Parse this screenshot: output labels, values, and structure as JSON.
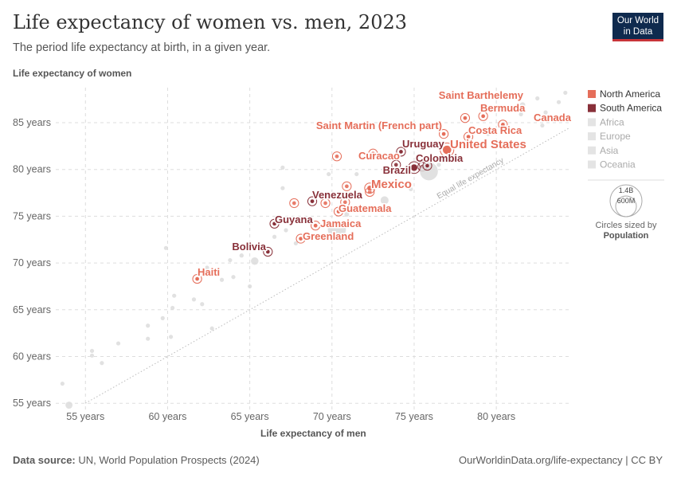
{
  "header": {
    "title": "Life expectancy of women vs. men, 2023",
    "subtitle": "The period life expectancy at birth, in a given year.",
    "logo": "Our World in Data"
  },
  "footer": {
    "source_label": "Data source:",
    "source": "UN, World Population Prospects (2024)",
    "license": "OurWorldinData.org/life-expectancy | CC BY"
  },
  "chart_data": {
    "type": "scatter",
    "title": "Life expectancy of women vs. men, 2023",
    "xlabel": "Life expectancy of men",
    "ylabel": "Life expectancy of women",
    "xlim": [
      53,
      84.5
    ],
    "ylim": [
      54.25,
      88.75
    ],
    "xticks": [
      {
        "v": 55,
        "label": "55 years"
      },
      {
        "v": 60,
        "label": "60 years"
      },
      {
        "v": 65,
        "label": "65 years"
      },
      {
        "v": 70,
        "label": "70 years"
      },
      {
        "v": 75,
        "label": "75 years"
      },
      {
        "v": 80,
        "label": "80 years"
      }
    ],
    "yticks": [
      {
        "v": 55,
        "label": "55 years"
      },
      {
        "v": 60,
        "label": "60 years"
      },
      {
        "v": 65,
        "label": "65 years"
      },
      {
        "v": 70,
        "label": "70 years"
      },
      {
        "v": 75,
        "label": "75 years"
      },
      {
        "v": 80,
        "label": "80 years"
      },
      {
        "v": 85,
        "label": "85 years"
      }
    ],
    "grid": true,
    "reference_line": {
      "label": "Equal life expectancy"
    },
    "colors": {
      "North America": "#e56e5a",
      "South America": "#883039",
      "other": "#dcdcdc"
    },
    "legend": {
      "position": "right",
      "entries": [
        "North America",
        "South America",
        "Africa",
        "Europe",
        "Asia",
        "Oceania"
      ],
      "size_title": "Circles sized by",
      "size_var": "Population",
      "size_values": [
        "1.4B",
        "600M"
      ]
    },
    "labeled_points": [
      {
        "name": "Saint Barthelemy",
        "region": "North America",
        "x": 78.1,
        "y": 85.5,
        "pop": 0.01
      },
      {
        "name": "Bermuda",
        "region": "North America",
        "x": 79.2,
        "y": 85.7,
        "pop": 0.06
      },
      {
        "name": "Canada",
        "region": "North America",
        "x": 80.4,
        "y": 84.8,
        "pop": 39
      },
      {
        "name": "Saint Martin (French part)",
        "region": "North America",
        "x": 76.8,
        "y": 83.8,
        "pop": 0.03
      },
      {
        "name": "Costa Rica",
        "region": "North America",
        "x": 78.3,
        "y": 83.5,
        "pop": 5
      },
      {
        "name": "United States",
        "region": "North America",
        "x": 77.0,
        "y": 82.1,
        "pop": 340
      },
      {
        "name": "Uruguay",
        "region": "South America",
        "x": 74.2,
        "y": 81.9,
        "pop": 3.4
      },
      {
        "name": "Curacao",
        "region": "North America",
        "x": 72.5,
        "y": 81.7,
        "pop": 0.2
      },
      {
        "name": "Colombia",
        "region": "South America",
        "x": 75.8,
        "y": 80.4,
        "pop": 52
      },
      {
        "name": "Brazil",
        "region": "South America",
        "x": 75.0,
        "y": 80.2,
        "pop": 211
      },
      {
        "name": "Mexico",
        "region": "North America",
        "x": 72.3,
        "y": 78.0,
        "pop": 129
      },
      {
        "name": "Venezuela",
        "region": "South America",
        "x": 68.8,
        "y": 76.6,
        "pop": 28
      },
      {
        "name": "Guatemala",
        "region": "North America",
        "x": 70.4,
        "y": 75.5,
        "pop": 18
      },
      {
        "name": "Guyana",
        "region": "South America",
        "x": 66.5,
        "y": 74.2,
        "pop": 0.8
      },
      {
        "name": "Jamaica",
        "region": "North America",
        "x": 69.0,
        "y": 74.0,
        "pop": 2.8
      },
      {
        "name": "Greenland",
        "region": "North America",
        "x": 68.1,
        "y": 72.6,
        "pop": 0.06
      },
      {
        "name": "Bolivia",
        "region": "South America",
        "x": 66.1,
        "y": 71.2,
        "pop": 12
      },
      {
        "name": "Haiti",
        "region": "North America",
        "x": 61.8,
        "y": 68.3,
        "pop": 11.7
      }
    ],
    "other_points": [
      {
        "region": "North America",
        "x": 70.3,
        "y": 81.4,
        "pop": 0.1
      },
      {
        "region": "North America",
        "x": 67.7,
        "y": 76.4,
        "pop": 0.4
      },
      {
        "region": "North America",
        "x": 69.6,
        "y": 76.4,
        "pop": 0.5
      },
      {
        "region": "North America",
        "x": 70.9,
        "y": 78.2,
        "pop": 0.3
      },
      {
        "region": "North America",
        "x": 70.8,
        "y": 76.5,
        "pop": 1
      },
      {
        "region": "South America",
        "x": 73.9,
        "y": 80.5,
        "pop": 20
      },
      {
        "region": "South America",
        "x": 75.5,
        "y": 80.3,
        "pop": 46
      },
      {
        "region": "North America",
        "x": 72.3,
        "y": 77.6,
        "pop": 6
      },
      {
        "region": "other",
        "x": 53.6,
        "y": 57.1,
        "pop": 5
      },
      {
        "region": "other",
        "x": 54.0,
        "y": 54.8,
        "pop": 220
      },
      {
        "region": "other",
        "x": 55.4,
        "y": 60.6,
        "pop": 5
      },
      {
        "region": "other",
        "x": 55.4,
        "y": 60.1,
        "pop": 5
      },
      {
        "region": "other",
        "x": 56.0,
        "y": 59.3,
        "pop": 5
      },
      {
        "region": "other",
        "x": 57.0,
        "y": 61.4,
        "pop": 5
      },
      {
        "region": "other",
        "x": 58.8,
        "y": 63.3,
        "pop": 10
      },
      {
        "region": "other",
        "x": 58.8,
        "y": 61.9,
        "pop": 10
      },
      {
        "region": "other",
        "x": 59.7,
        "y": 64.1,
        "pop": 60
      },
      {
        "region": "other",
        "x": 60.2,
        "y": 62.1,
        "pop": 10
      },
      {
        "region": "other",
        "x": 60.3,
        "y": 65.2,
        "pop": 15
      },
      {
        "region": "other",
        "x": 60.4,
        "y": 66.5,
        "pop": 5
      },
      {
        "region": "other",
        "x": 59.9,
        "y": 71.6,
        "pop": 5
      },
      {
        "region": "other",
        "x": 61.6,
        "y": 66.1,
        "pop": 30
      },
      {
        "region": "other",
        "x": 62.1,
        "y": 65.6,
        "pop": 10
      },
      {
        "region": "other",
        "x": 62.4,
        "y": 69.5,
        "pop": 20
      },
      {
        "region": "other",
        "x": 62.8,
        "y": 68.8,
        "pop": 30
      },
      {
        "region": "other",
        "x": 63.3,
        "y": 68.2,
        "pop": 60
      },
      {
        "region": "other",
        "x": 63.8,
        "y": 70.3,
        "pop": 20
      },
      {
        "region": "other",
        "x": 64.0,
        "y": 68.5,
        "pop": 40
      },
      {
        "region": "other",
        "x": 64.5,
        "y": 70.8,
        "pop": 80
      },
      {
        "region": "other",
        "x": 65.3,
        "y": 70.2,
        "pop": 250
      },
      {
        "region": "other",
        "x": 65.0,
        "y": 67.5,
        "pop": 10
      },
      {
        "region": "other",
        "x": 62.7,
        "y": 63.0,
        "pop": 5
      },
      {
        "region": "other",
        "x": 66.5,
        "y": 72.8,
        "pop": 10
      },
      {
        "region": "other",
        "x": 67.2,
        "y": 73.5,
        "pop": 10
      },
      {
        "region": "other",
        "x": 67.8,
        "y": 72.1,
        "pop": 20
      },
      {
        "region": "other",
        "x": 68.8,
        "y": 72.7,
        "pop": 10
      },
      {
        "region": "other",
        "x": 70.3,
        "y": 73.6,
        "pop": 1440
      },
      {
        "region": "other",
        "x": 70.9,
        "y": 75.2,
        "pop": 100
      },
      {
        "region": "other",
        "x": 67.0,
        "y": 80.2,
        "pop": 10
      },
      {
        "region": "other",
        "x": 67.0,
        "y": 78.0,
        "pop": 10
      },
      {
        "region": "other",
        "x": 69.8,
        "y": 79.5,
        "pop": 60
      },
      {
        "region": "other",
        "x": 71.5,
        "y": 79.5,
        "pop": 30
      },
      {
        "region": "other",
        "x": 73.2,
        "y": 76.7,
        "pop": 280
      },
      {
        "region": "other",
        "x": 74.8,
        "y": 77.9,
        "pop": 30
      },
      {
        "region": "other",
        "x": 75.9,
        "y": 79.8,
        "pop": 1410
      },
      {
        "region": "other",
        "x": 76.5,
        "y": 80.5,
        "pop": 20
      },
      {
        "region": "other",
        "x": 78.5,
        "y": 82.6,
        "pop": 60
      },
      {
        "region": "other",
        "x": 79.5,
        "y": 83.8,
        "pop": 30
      },
      {
        "region": "other",
        "x": 80.5,
        "y": 84.4,
        "pop": 20
      },
      {
        "region": "other",
        "x": 81.5,
        "y": 85.9,
        "pop": 20
      },
      {
        "region": "other",
        "x": 81.6,
        "y": 86.9,
        "pop": 124
      },
      {
        "region": "other",
        "x": 82.5,
        "y": 87.6,
        "pop": 5
      },
      {
        "region": "other",
        "x": 83.0,
        "y": 86.1,
        "pop": 5
      },
      {
        "region": "other",
        "x": 84.2,
        "y": 88.2,
        "pop": 1
      },
      {
        "region": "other",
        "x": 83.8,
        "y": 87.2,
        "pop": 1
      },
      {
        "region": "other",
        "x": 82.8,
        "y": 84.7,
        "pop": 10
      },
      {
        "region": "other",
        "x": 80.8,
        "y": 84.2,
        "pop": 60
      },
      {
        "region": "other",
        "x": 78.9,
        "y": 82.8,
        "pop": 10
      }
    ]
  }
}
